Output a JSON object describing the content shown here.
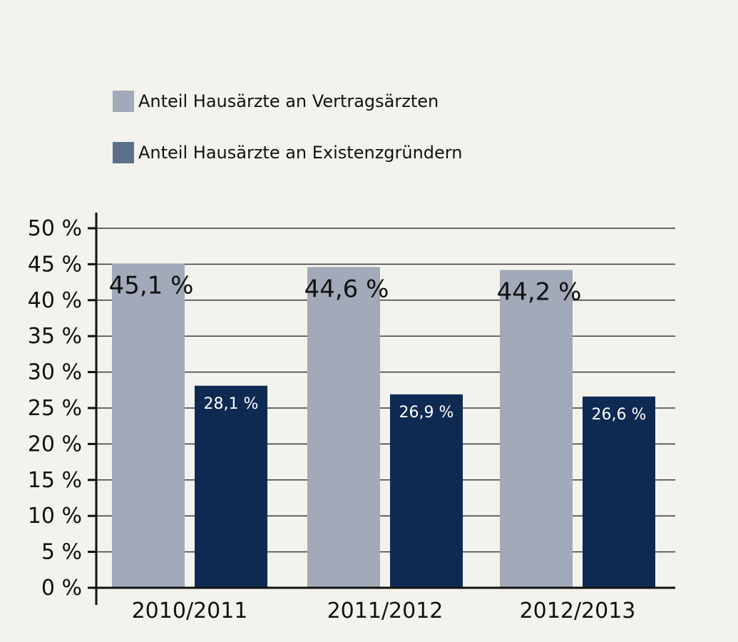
{
  "colors": {
    "background": "#f3f2ec",
    "series_1": "#a2a9b8",
    "series_2": "#0f2a52",
    "legend_series_2": "#5c7189",
    "grid": "#3a3a3a",
    "axis": "#111111"
  },
  "chart_data": {
    "type": "bar",
    "categories": [
      "2010/2011",
      "2011/2012",
      "2012/2013"
    ],
    "series": [
      {
        "name": "Anteil Hausärzte an Vertragsärzten",
        "values": [
          45.1,
          44.6,
          44.2
        ],
        "labels": [
          "45,1 %",
          "44,6 %",
          "44,2 %"
        ]
      },
      {
        "name": "Anteil Hausärzte an Existenzgründern",
        "values": [
          28.1,
          26.9,
          26.6
        ],
        "labels": [
          "28,1 %",
          "26,9 %",
          "26,6 %"
        ]
      }
    ],
    "y_ticks": [
      0,
      5,
      10,
      15,
      20,
      25,
      30,
      35,
      40,
      45,
      50
    ],
    "y_tick_labels": [
      "0 %",
      "5 %",
      "10 %",
      "15 %",
      "20 %",
      "25 %",
      "30 %",
      "35 %",
      "40 %",
      "45 %",
      "50 %"
    ],
    "ylim": [
      0,
      50
    ],
    "grid": true,
    "legend_position": "top-left",
    "title": "",
    "xlabel": "",
    "ylabel": ""
  }
}
